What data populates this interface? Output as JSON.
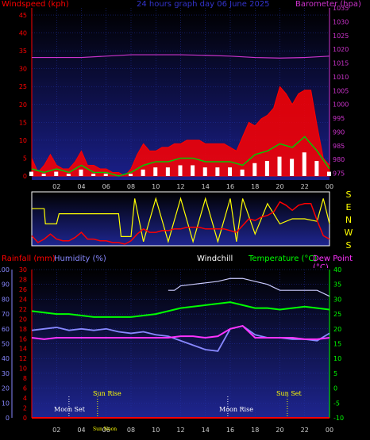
{
  "header": {
    "title": "24 hours graph day 06 June 2025",
    "windspeed_label": "Windspeed (kph)",
    "barometer_label": "Barometer (hpa)"
  },
  "direction_labels": [
    "S",
    "E",
    "N",
    "W",
    "S"
  ],
  "footer_labels": {
    "rainfall": "Rainfall (mm)",
    "humidity": "Humidity (%)",
    "windchill": "Windchill",
    "temperature": "Temperature (°C)",
    "dewpoint": "Dew Point (°C)"
  },
  "events": {
    "moon_set": "Moon Set",
    "sun_rise": "Sun Rise",
    "moon_rise": "Moon Rise",
    "sun_set": "Sun Set",
    "sun_noon": "Sun Noon"
  },
  "colors": {
    "gust": "#ff0000",
    "avg_wind": "#00cc00",
    "wind_white": "#ffffff",
    "barometer": "#cc33cc",
    "direction": "#ffff00",
    "temperature": "#00ff00",
    "dewpoint": "#ff33ff",
    "humidity": "#8888ff",
    "windchill": "#ccccff",
    "rain": "#ff0000"
  },
  "chart_data": [
    {
      "type": "line",
      "title": "24 hours graph day 06 June 2025",
      "x_tick_labels": [
        "02",
        "04",
        "06",
        "08",
        "10",
        "12",
        "14",
        "16",
        "18",
        "20",
        "22",
        "00"
      ],
      "y_left_ticks": [
        0,
        5,
        10,
        15,
        20,
        25,
        30,
        35,
        40,
        45
      ],
      "y_right_ticks": [
        975,
        980,
        985,
        990,
        995,
        1000,
        1005,
        1010,
        1015,
        1020,
        1025,
        1030,
        1035
      ],
      "ylabel_left": "Windspeed (kph)",
      "ylabel_right": "Barometer (hpa)",
      "ylim_left": [
        0,
        47
      ],
      "ylim_right": [
        974,
        1035
      ],
      "xlim": [
        0,
        24
      ],
      "series": [
        {
          "name": "Gust",
          "axis": "left",
          "x": [
            0,
            0.5,
            1,
            1.5,
            2,
            2.5,
            3,
            3.5,
            4,
            4.5,
            5,
            5.5,
            6,
            6.5,
            7,
            7.5,
            8,
            8.5,
            9,
            9.5,
            10,
            10.5,
            11,
            11.5,
            12,
            12.5,
            13,
            13.5,
            14,
            14.5,
            15,
            15.5,
            16,
            16.5,
            17,
            17.5,
            18,
            18.5,
            19,
            19.5,
            20,
            20.5,
            21,
            21.5,
            22,
            22.5,
            23,
            23.5,
            24
          ],
          "values": [
            5,
            1,
            3,
            6,
            3,
            2,
            2,
            4,
            7,
            3,
            3,
            2,
            2,
            1,
            1,
            0,
            2,
            6,
            9,
            7,
            7,
            8,
            8,
            9,
            9,
            10,
            10,
            10,
            9,
            9,
            9,
            9,
            8,
            7,
            11,
            15,
            14,
            16,
            17,
            19,
            25,
            23,
            20,
            23,
            24,
            24,
            14,
            5,
            3
          ]
        },
        {
          "name": "Average",
          "axis": "left",
          "x": [
            0,
            1,
            2,
            3,
            4,
            5,
            6,
            7,
            8,
            9,
            10,
            11,
            12,
            13,
            14,
            15,
            16,
            17,
            18,
            19,
            20,
            21,
            22,
            23,
            24
          ],
          "values": [
            2,
            1,
            2,
            1,
            3,
            1,
            1,
            0,
            1,
            3,
            4,
            4,
            5,
            5,
            4,
            4,
            4,
            3,
            6,
            7,
            9,
            8,
            11,
            7,
            2
          ]
        },
        {
          "name": "Barometer",
          "axis": "right",
          "x": [
            0,
            2,
            4,
            6,
            8,
            10,
            12,
            14,
            16,
            18,
            20,
            22,
            24
          ],
          "values": [
            1017,
            1017,
            1017,
            1017.5,
            1018,
            1018,
            1018,
            1017.8,
            1017.5,
            1017,
            1016.8,
            1017,
            1017.5
          ]
        }
      ],
      "axes_note": "Direction panel shows wind direction in yellow and gust in red",
      "legend": "none",
      "grid": true
    },
    {
      "type": "line",
      "x_tick_labels": [
        "02",
        "04",
        "06",
        "08",
        "10",
        "12",
        "14",
        "16",
        "18",
        "20",
        "22",
        "00"
      ],
      "humidity_ticks": [
        0,
        10,
        20,
        30,
        40,
        50,
        60,
        70,
        80,
        90,
        100
      ],
      "rain_ticks": [
        0,
        2,
        4,
        6,
        8,
        10,
        12,
        14,
        16,
        18,
        20,
        22,
        24,
        26,
        28,
        30
      ],
      "temp_ticks": [
        -10,
        -5,
        0,
        5,
        10,
        15,
        20,
        25,
        30,
        35,
        40
      ],
      "ylim_temp": [
        -10,
        40
      ],
      "xlim": [
        0,
        24
      ],
      "series": [
        {
          "name": "Temperature",
          "axis": "temp",
          "x": [
            0,
            1,
            2,
            3,
            4,
            5,
            6,
            7,
            8,
            9,
            10,
            11,
            12,
            13,
            14,
            15,
            16,
            17,
            18,
            19,
            20,
            21,
            22,
            23,
            24
          ],
          "values": [
            26,
            25.5,
            25,
            25,
            24.5,
            24,
            24,
            24,
            24,
            24.5,
            25,
            26,
            27,
            27.5,
            28,
            28.5,
            29,
            28,
            27,
            27,
            26.5,
            27,
            27.5,
            27,
            26.5
          ]
        },
        {
          "name": "Dew Point",
          "axis": "temp",
          "x": [
            0,
            1,
            2,
            3,
            4,
            5,
            6,
            7,
            8,
            9,
            10,
            11,
            12,
            13,
            14,
            15,
            16,
            17,
            18,
            19,
            20,
            21,
            22,
            23,
            24
          ],
          "values": [
            17,
            16.5,
            17,
            17,
            17,
            17,
            17,
            17,
            17,
            17,
            17,
            17,
            17.5,
            17.5,
            17,
            17.5,
            20,
            21,
            17,
            17,
            17,
            17,
            16.5,
            16.5,
            17
          ]
        },
        {
          "name": "Humidity",
          "axis": "humidity",
          "x": [
            0,
            1,
            2,
            3,
            4,
            5,
            6,
            7,
            8,
            9,
            10,
            11,
            12,
            13,
            14,
            15,
            16,
            17,
            18,
            19,
            20,
            21,
            22,
            23,
            24
          ],
          "values": [
            59,
            60,
            61,
            59,
            60,
            59,
            60,
            58,
            57,
            58,
            56,
            55,
            52,
            49,
            46,
            45,
            60,
            62,
            56,
            54,
            54,
            53,
            53,
            52,
            57
          ]
        },
        {
          "name": "Windchill",
          "axis": "temp",
          "x": [
            11,
            11.5,
            12,
            13,
            14,
            15,
            16,
            17,
            18,
            19,
            20,
            21,
            22,
            23,
            24
          ],
          "values": [
            33,
            33,
            34.5,
            35,
            35.5,
            36,
            37,
            37,
            36,
            35,
            33,
            33,
            33,
            33,
            31
          ]
        },
        {
          "name": "Rain",
          "axis": "rain",
          "x": [
            0,
            24
          ],
          "values": [
            0,
            0
          ]
        }
      ],
      "legend": "top",
      "grid": true
    }
  ]
}
